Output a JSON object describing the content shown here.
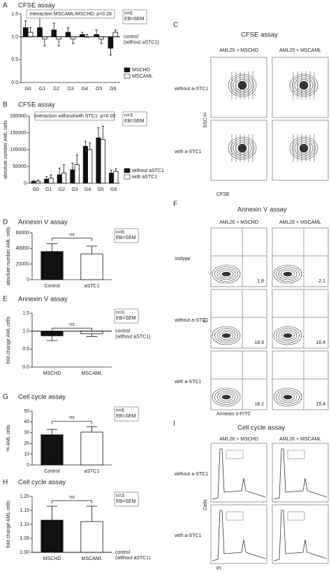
{
  "chart_data": [
    {
      "type": "bar",
      "letter": "A",
      "title": "CFSE assay",
      "y_label": "fold change AML cells",
      "categories": [
        "G0",
        "G1",
        "G2",
        "G3",
        "G4",
        "G5",
        "G6"
      ],
      "series": [
        {
          "name": "MSCHD",
          "color": "#111111",
          "values": [
            1.2,
            1.2,
            1.15,
            1.1,
            1.05,
            1.05,
            0.75
          ],
          "errors": [
            0.15,
            0.35,
            0.15,
            0.1,
            0.05,
            0.1,
            0.15
          ]
        },
        {
          "name": "MSCAML",
          "color": "#ffffff",
          "values": [
            1.1,
            0.95,
            0.95,
            0.95,
            1.0,
            0.95,
            1.1
          ],
          "errors": [
            0.1,
            0.15,
            0.15,
            0.1,
            0.05,
            0.1,
            0.05
          ]
        }
      ],
      "ylim": [
        0,
        1.5
      ],
      "yticks": [
        {
          "value": 0,
          "label": "0.0"
        },
        {
          "value": 0.5,
          "label": "0.5"
        },
        {
          "value": 1,
          "label": "1.0"
        },
        {
          "value": 1.5,
          "label": "1.5"
        }
      ],
      "reference_line": {
        "value": 1,
        "label": [
          "control",
          "(without aSTC1)"
        ]
      },
      "annotation": "Interaction MSCAML/MSCHD: p=0.28",
      "note": [
        "n=6",
        "EB=SEM"
      ]
    },
    {
      "type": "bar",
      "letter": "B",
      "title": "CFSE assay",
      "y_label": "absolute number AML cells",
      "categories": [
        "G0",
        "G1",
        "G2",
        "G3",
        "G4",
        "G5",
        "G6"
      ],
      "series": [
        {
          "name": "without aSTC1",
          "color": "#111111",
          "values": [
            5000,
            12000,
            25000,
            40000,
            110000,
            135000,
            30000
          ],
          "errors": [
            3000,
            8000,
            20000,
            20000,
            15000,
            30000,
            8000
          ]
        },
        {
          "name": "with aSTC1",
          "color": "#ffffff",
          "values": [
            6000,
            15000,
            30000,
            55000,
            100000,
            130000,
            35000
          ],
          "errors": [
            3000,
            10000,
            25000,
            30000,
            20000,
            40000,
            8000
          ]
        }
      ],
      "ylim": [
        0,
        200000
      ],
      "yticks": [
        0,
        50000,
        100000,
        150000,
        200000
      ],
      "annotation": "Interaction without/with STC1: p=0.09",
      "note": [
        "n=3",
        "EB=SEM"
      ]
    },
    {
      "type": "bar",
      "letter": "D",
      "title": "Annexin V assay",
      "y_label": "absolute number AML cells",
      "categories": [
        "Control",
        "aSTC1"
      ],
      "values": [
        36000,
        33000
      ],
      "errors": [
        10000,
        10000
      ],
      "colors": [
        "#111111",
        "#ffffff"
      ],
      "ylim": [
        0,
        60000
      ],
      "yticks": [
        0,
        20000,
        40000,
        60000
      ],
      "significance": "ns",
      "note": [
        "n=6",
        "EB=SEM"
      ]
    },
    {
      "type": "bar",
      "letter": "E",
      "title": "Annexin V assay",
      "y_label": "fold change AML cells",
      "categories": [
        "MSCHD",
        "MSCAML"
      ],
      "values": [
        0.87,
        0.93
      ],
      "errors": [
        0.13,
        0.08
      ],
      "colors": [
        "#111111",
        "#ffffff"
      ],
      "ylim": [
        0,
        1.5
      ],
      "yticks": [
        {
          "value": 0,
          "label": "0.0"
        },
        {
          "value": 0.5,
          "label": "0.5"
        },
        {
          "value": 1,
          "label": "1.0"
        },
        {
          "value": 1.5,
          "label": "1.5"
        }
      ],
      "reference_line": {
        "value": 1,
        "label": [
          "control",
          "(without aSTC1)"
        ]
      },
      "significance": "ns",
      "note": [
        "n=3",
        "EB=SEM"
      ]
    },
    {
      "type": "bar",
      "letter": "G",
      "title": "Cell cycle assay",
      "y_label": "% AML cells",
      "categories": [
        "Control",
        "aSTC1"
      ],
      "values": [
        28,
        30.5
      ],
      "errors": [
        5,
        5
      ],
      "colors": [
        "#111111",
        "#ffffff"
      ],
      "ylim": [
        0,
        50
      ],
      "yticks": [
        0,
        10,
        20,
        30,
        40,
        50
      ],
      "significance": "ns",
      "note": [
        "n=6",
        "EB=SEM"
      ]
    },
    {
      "type": "bar",
      "letter": "H",
      "title": "Cell cycle assay",
      "y_label": "fold change AML cells",
      "categories": [
        "MSCHD",
        "MSCAML"
      ],
      "values": [
        1.115,
        1.11
      ],
      "errors": [
        0.05,
        0.055
      ],
      "colors": [
        "#111111",
        "#ffffff"
      ],
      "ylim": [
        1,
        1.2
      ],
      "yticks": [
        {
          "value": 1,
          "label": "1.00"
        },
        1.05,
        {
          "value": 1.1,
          "label": "1.10"
        },
        1.15,
        {
          "value": 1.2,
          "label": "1.20"
        }
      ],
      "reference_line": {
        "value": 1,
        "label": [
          "control",
          "(without aSTC1)"
        ]
      },
      "significance": "ns",
      "note": [
        "n=3",
        "EB=SEM"
      ]
    }
  ],
  "flow_panels": [
    {
      "letter": "C",
      "title": "CFSE assay",
      "columns": [
        "AML25 + MSCHD",
        "AML25 + MSCAML"
      ],
      "rows": [
        "without a-STC1",
        "with a-STC1"
      ],
      "x_label": "CFSE",
      "y_label": "SSC-H"
    },
    {
      "letter": "F",
      "title": "Annexin V assay",
      "columns": [
        "AML26 + MSCHD",
        "AML26 + MSCAML"
      ],
      "rows": [
        "Isotype",
        "without a-STC1",
        "with a-STC1"
      ],
      "values": [
        [
          1.8,
          2.1
        ],
        [
          18.8,
          16.4
        ],
        [
          18.1,
          15.4
        ]
      ],
      "x_label": "Annexin V-FITC",
      "y_label": "PI"
    },
    {
      "letter": "I",
      "title": "Cell cycle assay",
      "columns": [
        "AML26 + MSCHD",
        "AML26 + MSCAML"
      ],
      "rows": [
        "without a-STC1",
        "with a-STC1"
      ],
      "x_label": "PI",
      "y_label": "Cells"
    }
  ]
}
